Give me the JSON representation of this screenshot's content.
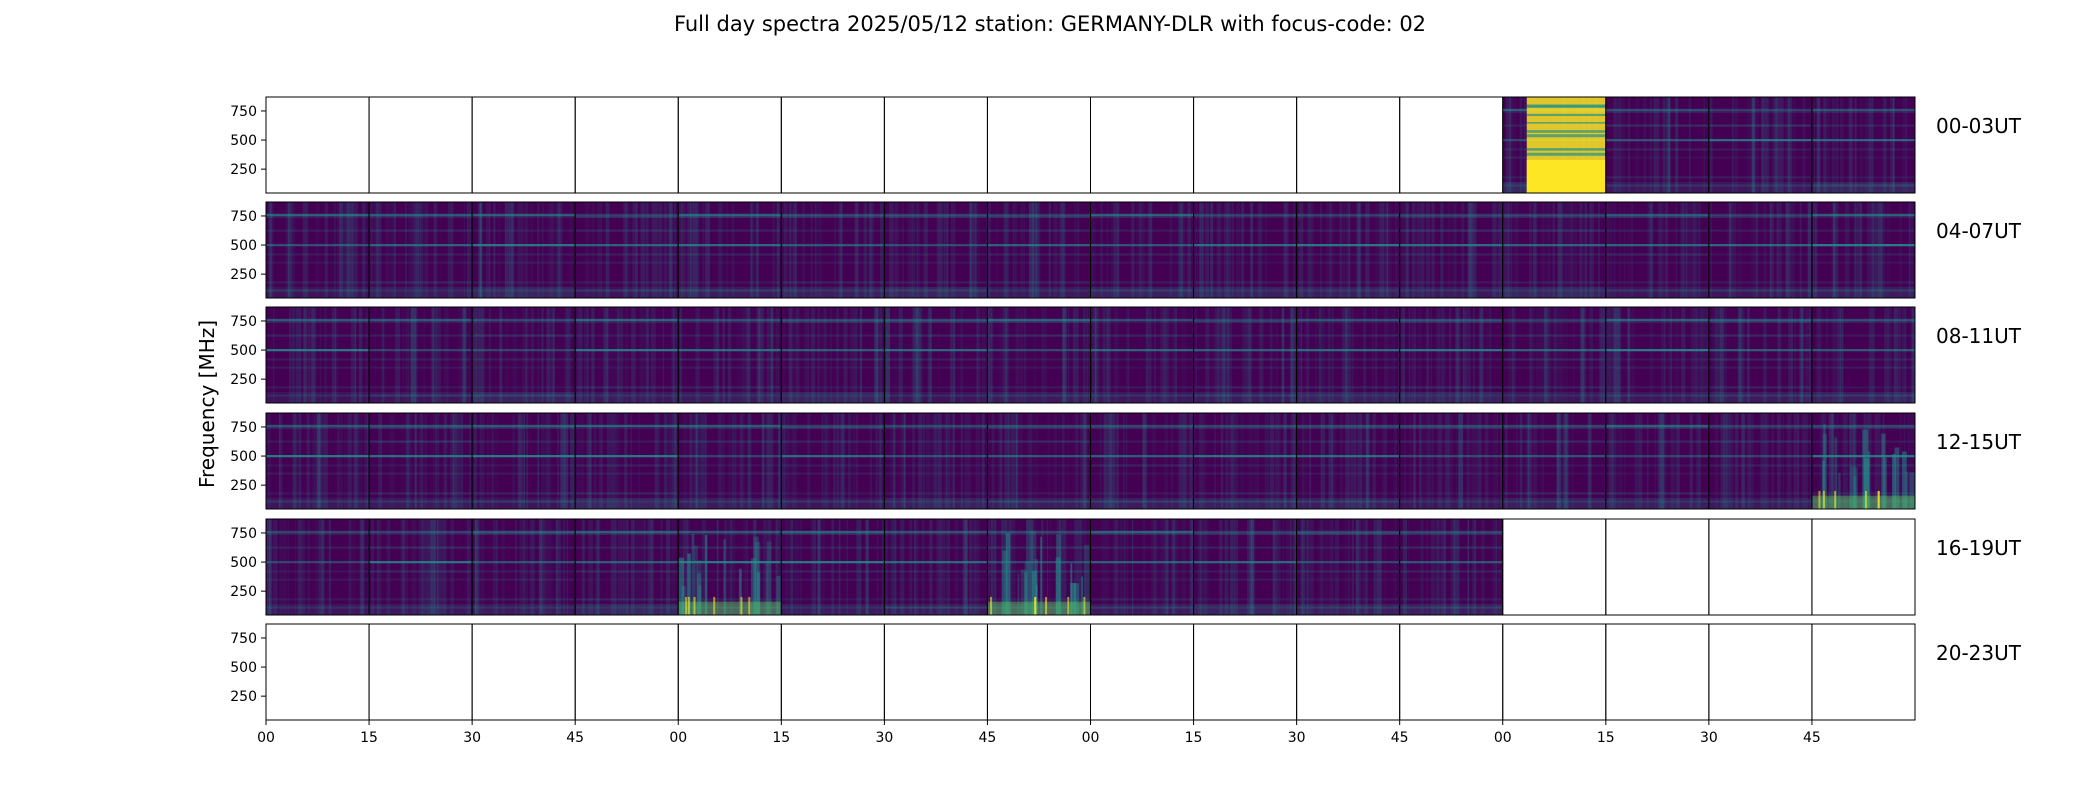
{
  "title": "Full day spectra 2025/05/12 station: GERMANY-DLR with focus-code: 02",
  "chart_data": {
    "type": "heatmap",
    "title": "Full day spectra 2025/05/12 station: GERMANY-DLR with focus-code: 02",
    "ylabel": "Frequency [MHz]",
    "yticks": [
      "250",
      "500",
      "750"
    ],
    "ylim": [
      45,
      870
    ],
    "xticks": [
      "00",
      "15",
      "30",
      "45",
      "00",
      "15",
      "30",
      "45",
      "00",
      "15",
      "30",
      "45",
      "00",
      "15",
      "30",
      "45"
    ],
    "colormap": "viridis",
    "colors": {
      "low": "#440154",
      "mid": "#21918c",
      "high": "#fde725"
    },
    "rows": [
      {
        "label": "00-03UT",
        "panels": [
          "empty",
          "empty",
          "empty",
          "empty",
          "empty",
          "empty",
          "empty",
          "empty",
          "empty",
          "empty",
          "empty",
          "empty",
          "burst",
          "data",
          "data",
          "data"
        ]
      },
      {
        "label": "04-07UT",
        "panels": [
          "data",
          "data",
          "data",
          "data",
          "data",
          "data",
          "data",
          "data",
          "data",
          "data",
          "data",
          "data",
          "data",
          "data",
          "data",
          "data"
        ]
      },
      {
        "label": "08-11UT",
        "panels": [
          "data",
          "data",
          "data",
          "data",
          "data",
          "data",
          "data",
          "data",
          "data",
          "data",
          "data",
          "data",
          "data",
          "data",
          "data",
          "data"
        ]
      },
      {
        "label": "12-15UT",
        "panels": [
          "data",
          "data",
          "data",
          "data",
          "data",
          "data",
          "data",
          "data",
          "data",
          "data",
          "data",
          "data",
          "data",
          "data",
          "data",
          "active"
        ]
      },
      {
        "label": "16-19UT",
        "panels": [
          "data",
          "data",
          "data",
          "data",
          "active",
          "data",
          "data",
          "active",
          "data",
          "data",
          "data",
          "data",
          "empty",
          "empty",
          "empty",
          "empty"
        ]
      },
      {
        "label": "20-23UT",
        "panels": [
          "empty",
          "empty",
          "empty",
          "empty",
          "empty",
          "empty",
          "empty",
          "empty",
          "empty",
          "empty",
          "empty",
          "empty",
          "empty",
          "empty",
          "empty",
          "empty"
        ]
      }
    ]
  }
}
